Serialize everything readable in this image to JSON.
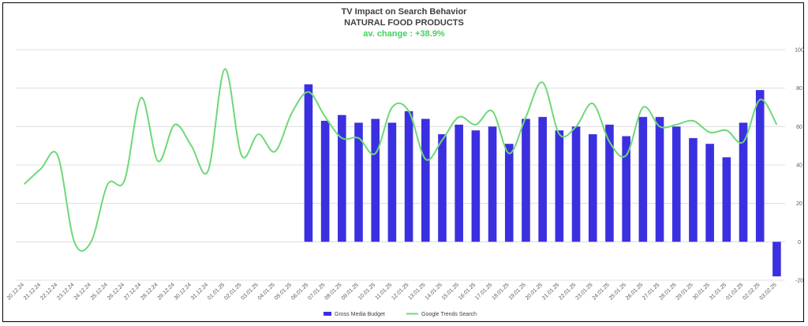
{
  "chart_data": {
    "type": "bar+line",
    "title": "TV Impact on Search Behavior",
    "subtitle": "NATURAL FOOD PRODUCTS",
    "annotation": "av. change : +38.9%",
    "annotation_color": "#3fd15f",
    "categories": [
      "20.12.24",
      "21.12.24",
      "22.12.24",
      "23.12.24",
      "24.12.24",
      "25.12.24",
      "26.12.24",
      "27.12.24",
      "28.12.24",
      "29.12.24",
      "30.12.24",
      "31.12.24",
      "01.01.25",
      "02.01.25",
      "03.01.25",
      "04.01.25",
      "05.01.25",
      "06.01.25",
      "07.01.25",
      "08.01.25",
      "09.01.25",
      "10.01.25",
      "11.01.25",
      "12.01.25",
      "13.01.25",
      "14.01.25",
      "15.01.25",
      "16.01.25",
      "17.01.25",
      "18.01.25",
      "19.01.25",
      "20.01.25",
      "21.01.25",
      "22.01.25",
      "23.01.25",
      "24.01.25",
      "25.01.25",
      "26.01.25",
      "27.01.25",
      "28.01.25",
      "29.01.25",
      "30.01.25",
      "31.01.25",
      "01.02.25",
      "02.02.25",
      "03.02.25"
    ],
    "y_axis_right": {
      "min": -20,
      "max": 100,
      "ticks": [
        -20,
        0,
        20,
        40,
        60,
        80,
        100
      ]
    },
    "grid": true,
    "legend_position": "bottom",
    "series": [
      {
        "name": "Gross Media Budget",
        "type": "bar",
        "color": "#3b30e0",
        "values": [
          null,
          null,
          null,
          null,
          null,
          null,
          null,
          null,
          null,
          null,
          null,
          null,
          null,
          null,
          null,
          null,
          null,
          82,
          63,
          66,
          62,
          64,
          62,
          68,
          64,
          56,
          61,
          58,
          60,
          51,
          64,
          65,
          58,
          60,
          56,
          61,
          55,
          65,
          65,
          60,
          54,
          51,
          44,
          62,
          79,
          -18
        ]
      },
      {
        "name": "Google Trends Search",
        "type": "line",
        "color": "#6fd877",
        "values": [
          30,
          38,
          45,
          0,
          0,
          30,
          32,
          75,
          42,
          61,
          50,
          37,
          90,
          45,
          56,
          47,
          67,
          78,
          65,
          54,
          54,
          46,
          70,
          68,
          43,
          53,
          65,
          61,
          68,
          46,
          65,
          83,
          56,
          60,
          72,
          52,
          45,
          70,
          60,
          61,
          63,
          57,
          58,
          52,
          74,
          61
        ]
      }
    ]
  }
}
